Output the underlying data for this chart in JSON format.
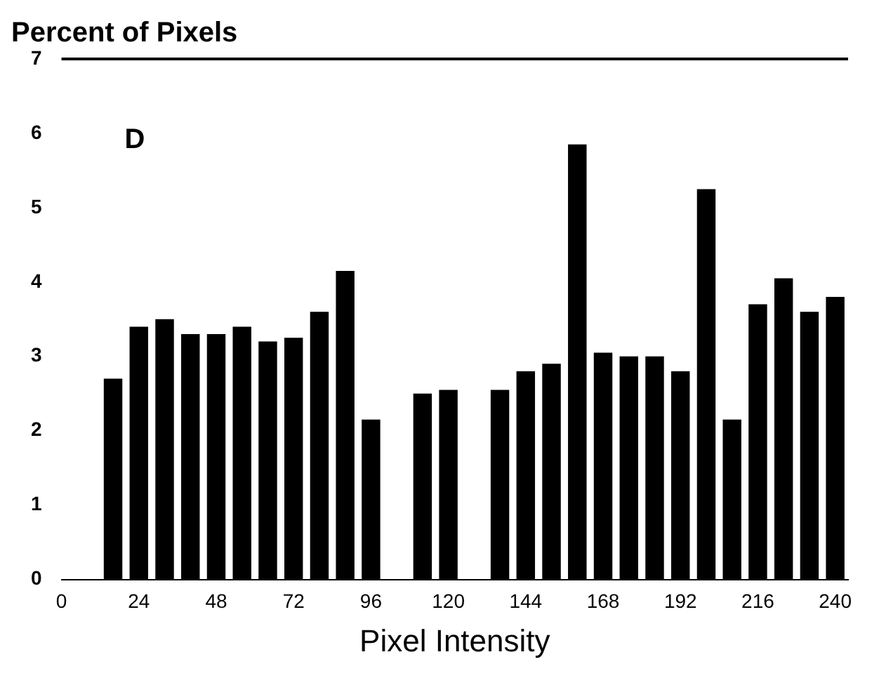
{
  "chart_data": {
    "type": "histogram",
    "title": "Percent of Pixels",
    "xlabel": "Pixel Intensity",
    "annotations": [
      "D"
    ],
    "bins": [
      12,
      20,
      28,
      36,
      44,
      52,
      60,
      68,
      76,
      84,
      92,
      100,
      108,
      116,
      124,
      132,
      140,
      148,
      156,
      164,
      172,
      180,
      188,
      196,
      204,
      212,
      220,
      228,
      236,
      244
    ],
    "values": [
      2.7,
      3.4,
      3.5,
      3.3,
      3.3,
      3.4,
      3.2,
      3.25,
      3.6,
      4.15,
      2.15,
      0,
      2.5,
      2.55,
      0,
      2.55,
      2.8,
      2.9,
      5.85,
      3.05,
      3,
      3,
      2.8,
      5.25,
      2.15,
      3.7,
      4.05,
      3.6,
      3.8
    ],
    "color": "#000000",
    "xlim": [
      0,
      244
    ],
    "xticks": [
      0,
      24,
      48,
      72,
      96,
      120,
      144,
      168,
      192,
      216,
      240
    ],
    "ylim": [
      0,
      7
    ],
    "yticks": [
      0,
      1,
      2,
      3,
      4,
      5,
      6,
      7
    ],
    "grid": false,
    "legend": false
  }
}
